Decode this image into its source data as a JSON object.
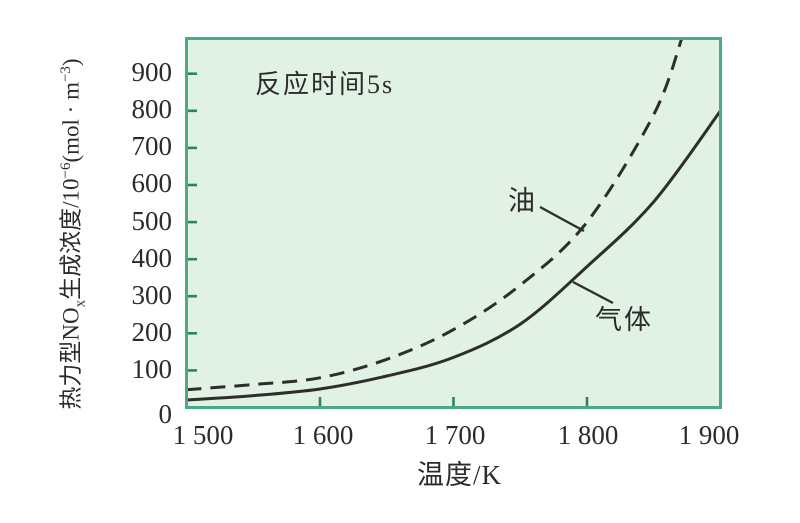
{
  "figure": {
    "annotation": "反应时间5s",
    "x_axis_title": "温度/K",
    "x_tick_labels": [
      "1 500",
      "1 600",
      "1 700",
      "1 800",
      "1 900"
    ],
    "y_tick_labels": [
      "0",
      "100",
      "200",
      "300",
      "400",
      "500",
      "600",
      "700",
      "800",
      "900"
    ],
    "y_axis_label_parts": [
      {
        "t": "热力型NO",
        "style": "text"
      },
      {
        "t": "x",
        "style": "sub"
      },
      {
        "t": "生成浓度/10",
        "style": "text"
      },
      {
        "t": "−6",
        "style": "sup"
      },
      {
        "t": "(mol · m",
        "style": "text"
      },
      {
        "t": "−3",
        "style": "sup"
      },
      {
        "t": ")",
        "style": "text"
      }
    ]
  },
  "colors": {
    "page_bg": "#ffffff",
    "plot_bg": "#e1f1e4",
    "plot_border": "#4caa82",
    "tick_mark": "#2a855c",
    "curve": "#2d2d2d",
    "text": "#2b2b2b"
  },
  "chart_data": {
    "type": "line",
    "title": "",
    "xlabel": "温度/K",
    "ylabel": "热力型NOx生成浓度/10−6(mol·m−3)",
    "annotation": "反应时间5s",
    "xlim": [
      1500,
      1900
    ],
    "ylim": [
      0,
      995
    ],
    "x_ticks": [
      1500,
      1600,
      1700,
      1800,
      1900
    ],
    "y_ticks": [
      0,
      100,
      200,
      300,
      400,
      500,
      600,
      700,
      800,
      900
    ],
    "grid": false,
    "legend_position": "inline-curve-labels",
    "series": [
      {
        "name": "油",
        "line_style": "dashed",
        "x": [
          1500,
          1550,
          1600,
          1650,
          1700,
          1750,
          1800,
          1850,
          1871
        ],
        "values": [
          48,
          62,
          80,
          130,
          210,
          330,
          500,
          790,
          995
        ]
      },
      {
        "name": "气体",
        "line_style": "solid",
        "x": [
          1500,
          1550,
          1600,
          1650,
          1700,
          1750,
          1800,
          1850,
          1900
        ],
        "values": [
          20,
          32,
          50,
          85,
          135,
          225,
          380,
          555,
          800
        ]
      }
    ]
  }
}
